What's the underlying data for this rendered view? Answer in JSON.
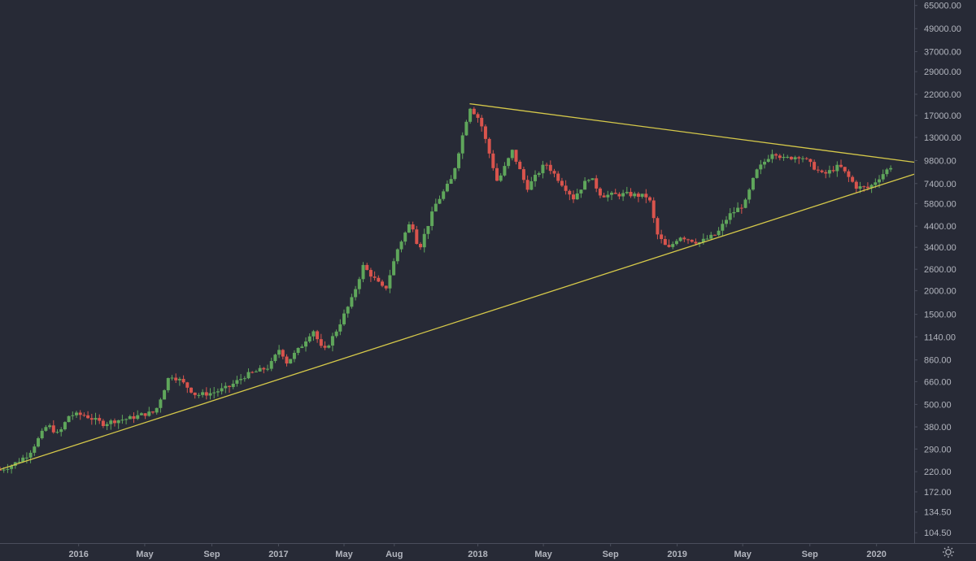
{
  "colors": {
    "background": "#272a36",
    "axis_text": "#b2b5be",
    "axis_line": "#4a4e5c",
    "bull": "#5fa65b",
    "bear": "#d9544d",
    "trendline": "#d6c94a"
  },
  "icons": {
    "settings": "gear-icon"
  },
  "chart_data": {
    "type": "candlestick",
    "title": "",
    "xlabel": "",
    "ylabel": "",
    "y_scale": "log",
    "grid": false,
    "legend": "none",
    "xlim": [
      "2015-08-10",
      "2020-03-10"
    ],
    "ylim": [
      92,
      69500
    ],
    "y_ticks": [
      "65000.00",
      "49000.00",
      "37000.00",
      "29000.00",
      "22000.00",
      "17000.00",
      "13000.00",
      "9800.00",
      "7400.00",
      "5800.00",
      "4400.00",
      "3400.00",
      "2600.00",
      "2000.00",
      "1500.00",
      "1140.00",
      "860.00",
      "660.00",
      "500.00",
      "380.00",
      "290.00",
      "220.00",
      "172.00",
      "134.50",
      "104.50"
    ],
    "x_ticks": [
      {
        "label": "2016",
        "date": "2016-01-01"
      },
      {
        "label": "May",
        "date": "2016-05-01"
      },
      {
        "label": "Sep",
        "date": "2016-09-01"
      },
      {
        "label": "2017",
        "date": "2017-01-01"
      },
      {
        "label": "May",
        "date": "2017-05-01"
      },
      {
        "label": "Aug",
        "date": "2017-08-01"
      },
      {
        "label": "2018",
        "date": "2018-01-01"
      },
      {
        "label": "May",
        "date": "2018-05-01"
      },
      {
        "label": "Sep",
        "date": "2018-09-01"
      },
      {
        "label": "2019",
        "date": "2019-01-01"
      },
      {
        "label": "May",
        "date": "2019-05-01"
      },
      {
        "label": "Sep",
        "date": "2019-09-01"
      },
      {
        "label": "2020",
        "date": "2020-01-01"
      }
    ],
    "series": [
      {
        "name": "",
        "close_points": [
          [
            "2015-08-10",
            225
          ],
          [
            "2015-09-01",
            238
          ],
          [
            "2015-10-01",
            272
          ],
          [
            "2015-11-05",
            390
          ],
          [
            "2015-11-25",
            345
          ],
          [
            "2015-12-15",
            440
          ],
          [
            "2016-01-10",
            440
          ],
          [
            "2016-02-15",
            395
          ],
          [
            "2016-03-10",
            412
          ],
          [
            "2016-04-01",
            420
          ],
          [
            "2016-05-01",
            445
          ],
          [
            "2016-05-20",
            455
          ],
          [
            "2016-06-16",
            720
          ],
          [
            "2016-07-05",
            670
          ],
          [
            "2016-08-03",
            560
          ],
          [
            "2016-09-01",
            575
          ],
          [
            "2016-10-01",
            615
          ],
          [
            "2016-11-01",
            710
          ],
          [
            "2016-12-15",
            790
          ],
          [
            "2017-01-04",
            1000
          ],
          [
            "2017-01-15",
            830
          ],
          [
            "2017-02-10",
            1000
          ],
          [
            "2017-03-05",
            1250
          ],
          [
            "2017-03-24",
            940
          ],
          [
            "2017-04-15",
            1200
          ],
          [
            "2017-05-15",
            1800
          ],
          [
            "2017-06-05",
            2700
          ],
          [
            "2017-07-15",
            2000
          ],
          [
            "2017-08-08",
            3400
          ],
          [
            "2017-09-01",
            4700
          ],
          [
            "2017-09-15",
            3300
          ],
          [
            "2017-10-15",
            5700
          ],
          [
            "2017-11-15",
            7900
          ],
          [
            "2017-12-17",
            19000
          ],
          [
            "2018-01-05",
            16000
          ],
          [
            "2018-02-06",
            7500
          ],
          [
            "2018-03-05",
            11000
          ],
          [
            "2018-04-01",
            7000
          ],
          [
            "2018-05-05",
            9500
          ],
          [
            "2018-06-25",
            6200
          ],
          [
            "2018-07-25",
            8100
          ],
          [
            "2018-08-15",
            6400
          ],
          [
            "2018-10-01",
            6500
          ],
          [
            "2018-11-10",
            6300
          ],
          [
            "2018-11-25",
            4000
          ],
          [
            "2018-12-15",
            3300
          ],
          [
            "2019-01-05",
            3900
          ],
          [
            "2019-02-10",
            3600
          ],
          [
            "2019-03-15",
            4000
          ],
          [
            "2019-04-05",
            5000
          ],
          [
            "2019-05-05",
            5800
          ],
          [
            "2019-05-25",
            8500
          ],
          [
            "2019-06-26",
            11000
          ],
          [
            "2019-07-15",
            10000
          ],
          [
            "2019-08-15",
            10400
          ],
          [
            "2019-09-25",
            8200
          ],
          [
            "2019-10-25",
            9200
          ],
          [
            "2019-11-25",
            7100
          ],
          [
            "2019-12-18",
            7000
          ],
          [
            "2020-01-10",
            8200
          ],
          [
            "2020-02-01",
            9400
          ]
        ]
      }
    ],
    "annotations": [
      {
        "type": "trendline",
        "label": "",
        "from": [
          "2015-08-10",
          226
        ],
        "to": [
          "2020-03-10",
          8300
        ]
      },
      {
        "type": "trendline",
        "label": "",
        "from": [
          "2017-12-17",
          19600
        ],
        "to": [
          "2020-03-10",
          9600
        ]
      }
    ]
  }
}
